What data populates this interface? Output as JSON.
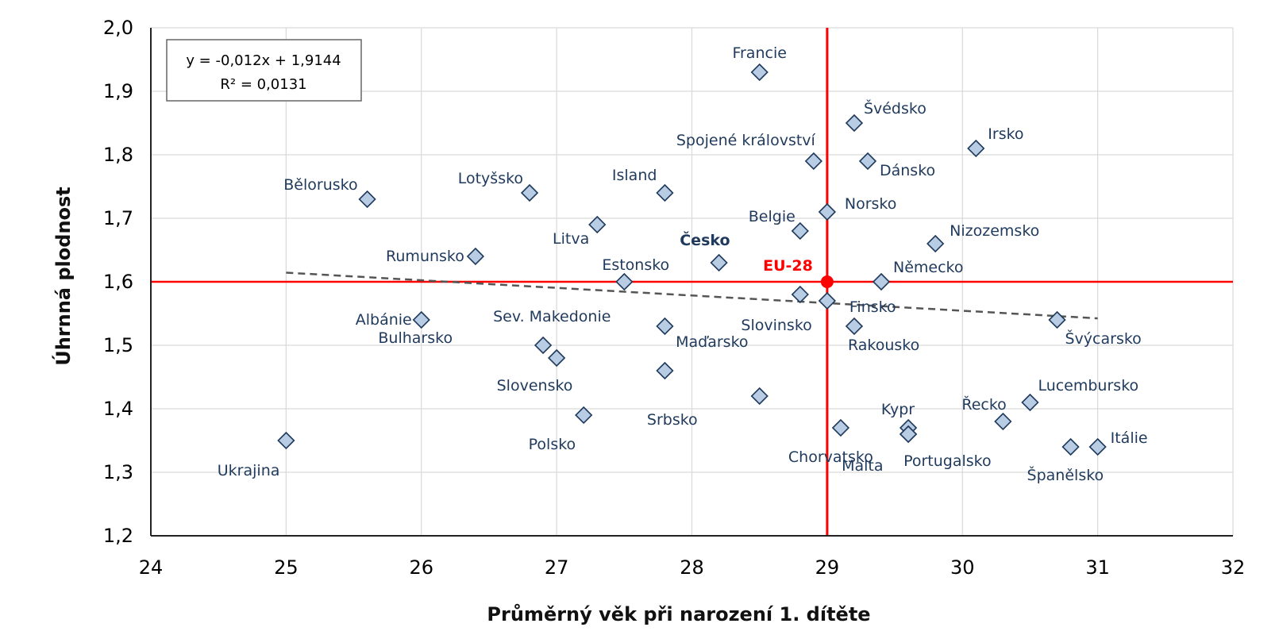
{
  "chart_data": {
    "type": "scatter",
    "title": "",
    "xlabel": "Průměrný věk při narození 1. dítěte",
    "ylabel": "Úhrnná plodnost",
    "xlim": [
      24,
      32
    ],
    "ylim": [
      1.2,
      2.0
    ],
    "x_ticks": [
      "24",
      "25",
      "26",
      "27",
      "28",
      "29",
      "30",
      "31",
      "32"
    ],
    "y_ticks": [
      "2,0",
      "1,9",
      "1,8",
      "1,7",
      "1,6",
      "1,5",
      "1,4",
      "1,3",
      "1,2"
    ],
    "grid": true,
    "marker_color": "#b8cce4",
    "marker_edge_color": "#1f3a5c",
    "reference": {
      "label": "EU-28",
      "x": 29.0,
      "y": 1.6,
      "color": "#ff0000"
    },
    "trendline": {
      "equation": "y = -0,012x + 1,9144",
      "r_squared": "R² = 0,0131",
      "slope": -0.012,
      "intercept": 1.9144,
      "x_range": [
        25,
        31
      ]
    },
    "points": [
      {
        "name": "Francie",
        "x": 28.5,
        "y": 1.93
      },
      {
        "name": "Švédsko",
        "x": 29.2,
        "y": 1.85
      },
      {
        "name": "Irsko",
        "x": 30.1,
        "y": 1.81
      },
      {
        "name": "Spojené království",
        "x": 28.9,
        "y": 1.79
      },
      {
        "name": "Dánsko",
        "x": 29.3,
        "y": 1.79
      },
      {
        "name": "Bělorusko",
        "x": 25.6,
        "y": 1.73
      },
      {
        "name": "Lotyšsko",
        "x": 26.8,
        "y": 1.74
      },
      {
        "name": "Island",
        "x": 27.8,
        "y": 1.74
      },
      {
        "name": "Norsko",
        "x": 29.0,
        "y": 1.71
      },
      {
        "name": "Belgie",
        "x": 28.8,
        "y": 1.68
      },
      {
        "name": "Litva",
        "x": 27.3,
        "y": 1.69
      },
      {
        "name": "Nizozemsko",
        "x": 29.8,
        "y": 1.66
      },
      {
        "name": "Rumunsko",
        "x": 26.4,
        "y": 1.64
      },
      {
        "name": "Česko",
        "x": 28.2,
        "y": 1.63
      },
      {
        "name": "Estonsko",
        "x": 27.5,
        "y": 1.6
      },
      {
        "name": "Německo",
        "x": 29.4,
        "y": 1.6
      },
      {
        "name": "Slovinsko",
        "x": 28.8,
        "y": 1.58
      },
      {
        "name": "Finsko",
        "x": 29.0,
        "y": 1.57
      },
      {
        "name": "Albánie",
        "x": 26.0,
        "y": 1.54
      },
      {
        "name": "Švýcarsko",
        "x": 30.7,
        "y": 1.54
      },
      {
        "name": "Sev. Makedonie",
        "x": 27.8,
        "y": 1.53
      },
      {
        "name": "Rakousko",
        "x": 29.2,
        "y": 1.53
      },
      {
        "name": "Bulharsko",
        "x": 26.9,
        "y": 1.5
      },
      {
        "name": "Maďarsko",
        "x": 27.0,
        "y": 1.48
      },
      {
        "name": "Slovensko",
        "x": 27.8,
        "y": 1.46
      },
      {
        "name": "Srbsko",
        "x": 28.5,
        "y": 1.42
      },
      {
        "name": "Lucembursko",
        "x": 30.5,
        "y": 1.41
      },
      {
        "name": "Řecko",
        "x": 30.3,
        "y": 1.38
      },
      {
        "name": "Polsko",
        "x": 27.2,
        "y": 1.39
      },
      {
        "name": "Chorvatsko",
        "x": 29.1,
        "y": 1.37
      },
      {
        "name": "Kypr",
        "x": 29.6,
        "y": 1.37
      },
      {
        "name": "Malta",
        "x": 29.6,
        "y": 1.36
      },
      {
        "name": "Ukrajina",
        "x": 25.0,
        "y": 1.35
      },
      {
        "name": "Španělsko",
        "x": 30.8,
        "y": 1.34
      },
      {
        "name": "Itálie",
        "x": 31.0,
        "y": 1.34
      },
      {
        "name": "Portugalsko",
        "x": 29.6,
        "y": 1.36
      }
    ]
  }
}
